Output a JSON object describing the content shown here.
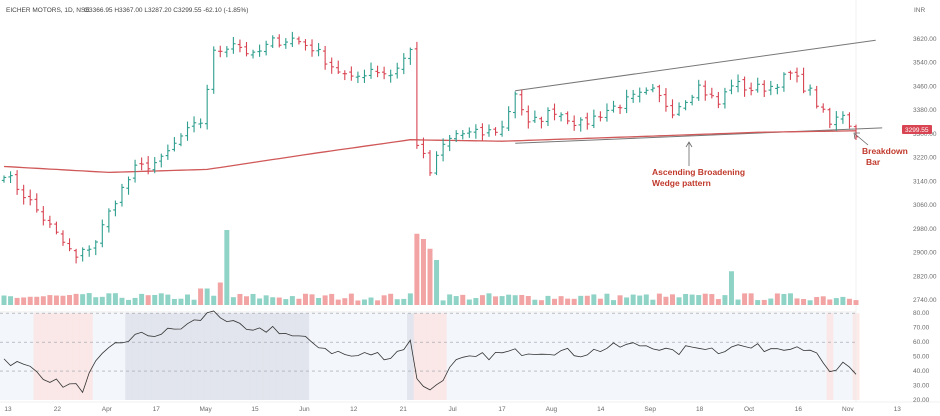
{
  "header": {
    "symbol": "EICHER MOTORS, 1D, NSE",
    "ohlc": "O3366.95 H3367.00 L3287.20 C3299.55 -62.10 (-1.85%)"
  },
  "currency_label": "INR",
  "price_badge": "3299.55",
  "annotations": {
    "pattern_line1": "Ascending Broadening",
    "pattern_line2": "Wedge pattern",
    "breakdown_line1": "Breakdown",
    "breakdown_line2": "Bar"
  },
  "colors": {
    "up": "#2e9e8e",
    "down": "#d84452",
    "ma": "#d05858",
    "vol_up": "#8fd3c6",
    "vol_down": "#f2a3a3",
    "rsi_line": "#333333",
    "annotation": "#c0392b"
  },
  "chart_data": [
    {
      "type": "ohlc",
      "title": "EICHER MOTORS, 1D, NSE",
      "x_ticks": [
        "13",
        "22",
        "Apr",
        "17",
        "May",
        "15",
        "Jun",
        "12",
        "21",
        "Jul",
        "17",
        "Aug",
        "14",
        "Sep",
        "18",
        "Oct",
        "16",
        "Nov",
        "13"
      ],
      "y_ticks": [
        "3620.00",
        "3540.00",
        "3460.00",
        "3380.00",
        "3300.00",
        "3220.00",
        "3140.00",
        "3060.00",
        "2980.00",
        "2900.00",
        "2820.00",
        "2740.00"
      ],
      "ylim": [
        2700,
        3700
      ],
      "close_anchors": [
        [
          0,
          3170
        ],
        [
          4,
          3070
        ],
        [
          8,
          2960
        ],
        [
          11,
          2880
        ],
        [
          14,
          2940
        ],
        [
          17,
          3080
        ],
        [
          20,
          3180
        ],
        [
          24,
          3210
        ],
        [
          27,
          3290
        ],
        [
          30,
          3340
        ],
        [
          32,
          3570
        ],
        [
          35,
          3610
        ],
        [
          38,
          3560
        ],
        [
          41,
          3610
        ],
        [
          44,
          3620
        ],
        [
          47,
          3590
        ],
        [
          50,
          3530
        ],
        [
          53,
          3480
        ],
        [
          56,
          3520
        ],
        [
          59,
          3500
        ],
        [
          62,
          3580
        ],
        [
          63,
          3270
        ],
        [
          65,
          3170
        ],
        [
          67,
          3260
        ],
        [
          69,
          3300
        ],
        [
          73,
          3300
        ],
        [
          76,
          3320
        ],
        [
          78,
          3440
        ],
        [
          80,
          3330
        ],
        [
          84,
          3380
        ],
        [
          88,
          3330
        ],
        [
          92,
          3380
        ],
        [
          96,
          3420
        ],
        [
          99,
          3440
        ],
        [
          102,
          3380
        ],
        [
          106,
          3460
        ],
        [
          109,
          3400
        ],
        [
          111,
          3470
        ],
        [
          114,
          3450
        ],
        [
          117,
          3460
        ],
        [
          120,
          3500
        ],
        [
          123,
          3440
        ],
        [
          126,
          3330
        ],
        [
          128,
          3370
        ],
        [
          130,
          3300
        ]
      ],
      "moving_average_anchors": [
        [
          0,
          3190
        ],
        [
          16,
          3170
        ],
        [
          31,
          3180
        ],
        [
          46,
          3230
        ],
        [
          62,
          3280
        ],
        [
          76,
          3275
        ],
        [
          96,
          3290
        ],
        [
          115,
          3305
        ],
        [
          130,
          3310
        ]
      ],
      "annotations": [
        "Ascending Broadening",
        "Wedge pattern",
        "Breakdown",
        "Bar"
      ]
    },
    {
      "type": "bar",
      "title": "Volume",
      "bar_count": 131,
      "spikes": [
        [
          34,
          1.0
        ],
        [
          63,
          0.95
        ],
        [
          64,
          0.88
        ],
        [
          65,
          0.75
        ],
        [
          66,
          0.6
        ],
        [
          111,
          0.45
        ]
      ]
    },
    {
      "type": "line",
      "title": "RSI",
      "y_ticks": [
        "80.00",
        "70.00",
        "60.00",
        "50.00",
        "40.00",
        "30.00",
        "20.00"
      ],
      "ylim": [
        20,
        85
      ],
      "levels": [
        80,
        60,
        40
      ],
      "anchors": [
        [
          0,
          48
        ],
        [
          4,
          42
        ],
        [
          8,
          32
        ],
        [
          12,
          28
        ],
        [
          14,
          45
        ],
        [
          17,
          58
        ],
        [
          20,
          64
        ],
        [
          24,
          66
        ],
        [
          27,
          70
        ],
        [
          30,
          76
        ],
        [
          32,
          82
        ],
        [
          35,
          72
        ],
        [
          38,
          66
        ],
        [
          41,
          70
        ],
        [
          44,
          64
        ],
        [
          47,
          60
        ],
        [
          50,
          54
        ],
        [
          53,
          50
        ],
        [
          56,
          52
        ],
        [
          59,
          50
        ],
        [
          62,
          60
        ],
        [
          63,
          36
        ],
        [
          65,
          26
        ],
        [
          67,
          36
        ],
        [
          69,
          46
        ],
        [
          73,
          50
        ],
        [
          76,
          52
        ],
        [
          80,
          54
        ],
        [
          84,
          54
        ],
        [
          88,
          52
        ],
        [
          92,
          56
        ],
        [
          96,
          58
        ],
        [
          99,
          58
        ],
        [
          102,
          52
        ],
        [
          106,
          58
        ],
        [
          109,
          54
        ],
        [
          111,
          58
        ],
        [
          114,
          56
        ],
        [
          117,
          56
        ],
        [
          120,
          58
        ],
        [
          123,
          56
        ],
        [
          126,
          38
        ],
        [
          128,
          44
        ],
        [
          130,
          36
        ]
      ]
    }
  ]
}
